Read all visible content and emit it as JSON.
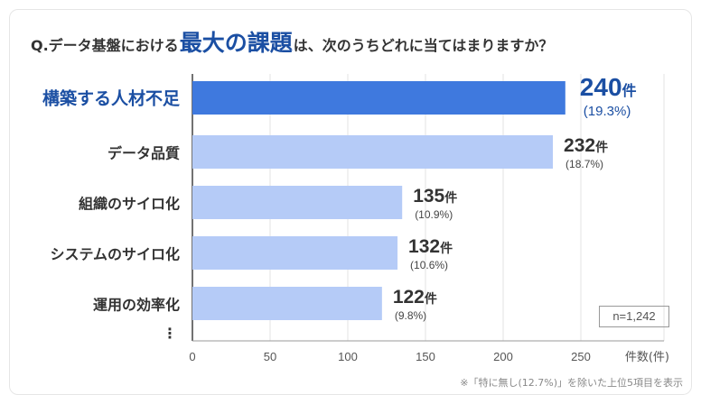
{
  "question": {
    "prefix": "Q.データ基盤における",
    "highlight": "最大の課題",
    "suffix": "は、次のうちどれに当てはまりますか？"
  },
  "chart_data": {
    "type": "bar",
    "orientation": "horizontal",
    "categories": [
      "構築する人材不足",
      "データ品質",
      "組織のサイロ化",
      "システムのサイロ化",
      "運用の効率化"
    ],
    "values": [
      240,
      232,
      135,
      132,
      122
    ],
    "percentages": [
      "(19.3%)",
      "(18.7%)",
      "(10.9%)",
      "(10.6%)",
      "(9.8%)"
    ],
    "value_unit": "件",
    "highlight_index": 0,
    "xticks": [
      0,
      50,
      100,
      150,
      200,
      250
    ],
    "xlim": [
      0,
      255
    ],
    "xlabel": "件数(件)",
    "grid": true,
    "colors": {
      "highlight": "#3f79de",
      "normal": "#b5cbf7",
      "highlight_text": "#1b4fa3"
    },
    "continuation": "⋮"
  },
  "sample_size": "n=1,242",
  "footnote": "※「特に無し(12.7%)」を除いた上位5項目を表示"
}
